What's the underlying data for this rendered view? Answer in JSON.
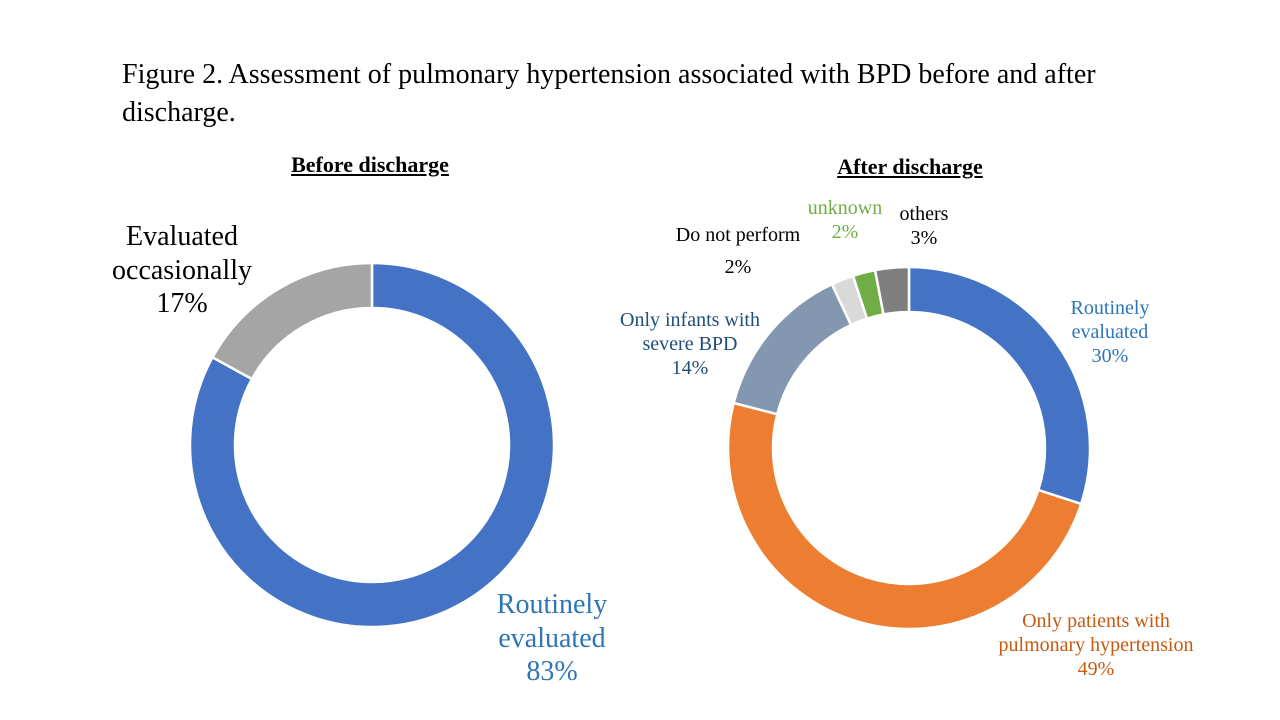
{
  "figure_title": "Figure 2. Assessment of pulmonary hypertension associated with BPD before and after discharge.",
  "chart_data": [
    {
      "type": "pie",
      "variant": "donut",
      "title": "Before discharge",
      "slices": [
        {
          "label": "Routinely evaluated",
          "value": 83,
          "display": "83%",
          "color": "#4472C4",
          "label_color": "#2E75B6"
        },
        {
          "label": "Evaluated occasionally",
          "value": 17,
          "display": "17%",
          "color": "#A5A5A5",
          "label_color": "#000000"
        }
      ]
    },
    {
      "type": "pie",
      "variant": "donut",
      "title": "After discharge",
      "slices": [
        {
          "label": "Routinely evaluated",
          "value": 30,
          "display": "30%",
          "color": "#4472C4",
          "label_color": "#2E75B6"
        },
        {
          "label": "Only patients with pulmonary hypertension",
          "value": 49,
          "display": "49%",
          "color": "#ED7D31",
          "label_color": "#C55A11"
        },
        {
          "label": "Only infants with severe BPD",
          "value": 14,
          "display": "14%",
          "color": "#8497B0",
          "label_color": "#1F4E79"
        },
        {
          "label": "Do not perform",
          "value": 2,
          "display": "2%",
          "color": "#D9D9D9",
          "label_color": "#000000"
        },
        {
          "label": "unknown",
          "value": 2,
          "display": "2%",
          "color": "#70AD47",
          "label_color": "#70AD47"
        },
        {
          "label": "others",
          "value": 3,
          "display": "3%",
          "color": "#7F7F7F",
          "label_color": "#000000"
        }
      ]
    }
  ],
  "labels": {
    "before": {
      "routine": [
        "Routinely",
        "evaluated"
      ],
      "occasional": [
        "Evaluated",
        "occasionally"
      ]
    },
    "after": {
      "routine": [
        "Routinely",
        "evaluated"
      ],
      "ph": [
        "Only patients with",
        "pulmonary hypertension"
      ],
      "severe": [
        "Only infants with",
        "severe BPD"
      ],
      "donot": [
        "Do not perform"
      ],
      "unknown": [
        "unknown"
      ],
      "others": [
        "others"
      ]
    }
  }
}
